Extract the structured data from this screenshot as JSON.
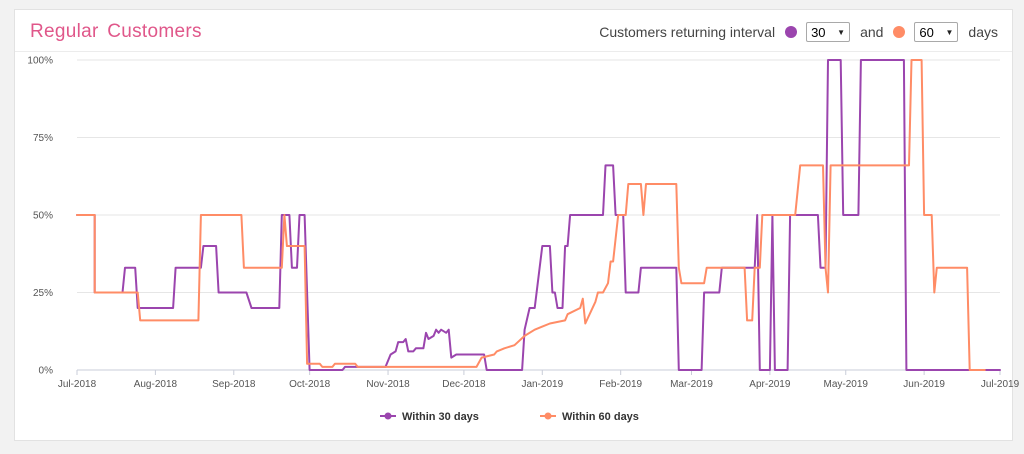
{
  "header": {
    "title": "Regular Customers",
    "interval_label": "Customers returning interval",
    "first_value": "30",
    "connector": "and",
    "second_value": "60",
    "unit": "days"
  },
  "colors": {
    "series_30": "#9b45ae",
    "series_60": "#ff8c66",
    "title": "#e0578a"
  },
  "icons": {
    "dropdown": "caret-down"
  },
  "chart_data": {
    "type": "line",
    "title": "",
    "xlabel": "",
    "ylabel": "",
    "ylim": [
      0,
      100
    ],
    "y_ticks": [
      0,
      25,
      50,
      75,
      100
    ],
    "y_tick_labels": [
      "0%",
      "25%",
      "50%",
      "75%",
      "100%"
    ],
    "x_range": [
      "2018-07-01",
      "2019-07-01"
    ],
    "x_ticks": [
      "2018-07-01",
      "2018-08-01",
      "2018-09-01",
      "2018-10-01",
      "2018-11-01",
      "2018-12-01",
      "2019-01-01",
      "2019-02-01",
      "2019-03-01",
      "2019-04-01",
      "2019-05-01",
      "2019-06-01",
      "2019-07-01"
    ],
    "x_tick_labels": [
      "Jul-2018",
      "Aug-2018",
      "Sep-2018",
      "Oct-2018",
      "Nov-2018",
      "Dec-2018",
      "Jan-2019",
      "Feb-2019",
      "Mar-2019",
      "Apr-2019",
      "May-2019",
      "Jun-2019",
      "Jul-2019"
    ],
    "legend_position": "bottom",
    "grid": true,
    "series": [
      {
        "name": "Within 30 days",
        "points": [
          [
            "2018-07-01",
            50
          ],
          [
            "2018-07-08",
            50
          ],
          [
            "2018-07-08",
            25
          ],
          [
            "2018-07-19",
            25
          ],
          [
            "2018-07-20",
            33
          ],
          [
            "2018-07-24",
            33
          ],
          [
            "2018-07-25",
            20
          ],
          [
            "2018-08-08",
            20
          ],
          [
            "2018-08-09",
            33
          ],
          [
            "2018-08-19",
            33
          ],
          [
            "2018-08-20",
            40
          ],
          [
            "2018-08-25",
            40
          ],
          [
            "2018-08-26",
            25
          ],
          [
            "2018-09-06",
            25
          ],
          [
            "2018-09-08",
            20
          ],
          [
            "2018-09-19",
            20
          ],
          [
            "2018-09-20",
            50
          ],
          [
            "2018-09-23",
            50
          ],
          [
            "2018-09-24",
            33
          ],
          [
            "2018-09-26",
            33
          ],
          [
            "2018-09-27",
            50
          ],
          [
            "2018-09-29",
            50
          ],
          [
            "2018-10-01",
            0
          ],
          [
            "2018-10-14",
            0
          ],
          [
            "2018-10-15",
            1
          ],
          [
            "2018-10-31",
            1
          ],
          [
            "2018-11-02",
            5
          ],
          [
            "2018-11-04",
            6
          ],
          [
            "2018-11-05",
            9
          ],
          [
            "2018-11-07",
            9
          ],
          [
            "2018-11-08",
            10
          ],
          [
            "2018-11-09",
            6
          ],
          [
            "2018-11-11",
            6
          ],
          [
            "2018-11-12",
            7
          ],
          [
            "2018-11-15",
            7
          ],
          [
            "2018-11-16",
            12
          ],
          [
            "2018-11-17",
            10
          ],
          [
            "2018-11-19",
            11
          ],
          [
            "2018-11-20",
            13
          ],
          [
            "2018-11-21",
            12
          ],
          [
            "2018-11-22",
            13
          ],
          [
            "2018-11-24",
            12
          ],
          [
            "2018-11-25",
            13
          ],
          [
            "2018-11-26",
            4
          ],
          [
            "2018-11-28",
            5
          ],
          [
            "2018-12-09",
            5
          ],
          [
            "2018-12-10",
            0
          ],
          [
            "2018-12-24",
            0
          ],
          [
            "2018-12-25",
            13
          ],
          [
            "2018-12-27",
            20
          ],
          [
            "2018-12-29",
            20
          ],
          [
            "2019-01-01",
            40
          ],
          [
            "2019-01-04",
            40
          ],
          [
            "2019-01-05",
            25
          ],
          [
            "2019-01-06",
            25
          ],
          [
            "2019-01-07",
            20
          ],
          [
            "2019-01-09",
            20
          ],
          [
            "2019-01-10",
            40
          ],
          [
            "2019-01-11",
            40
          ],
          [
            "2019-01-12",
            50
          ],
          [
            "2019-01-25",
            50
          ],
          [
            "2019-01-26",
            66
          ],
          [
            "2019-01-29",
            66
          ],
          [
            "2019-01-30",
            50
          ],
          [
            "2019-02-02",
            50
          ],
          [
            "2019-02-03",
            25
          ],
          [
            "2019-02-08",
            25
          ],
          [
            "2019-02-09",
            33
          ],
          [
            "2019-02-23",
            33
          ],
          [
            "2019-02-24",
            0
          ],
          [
            "2019-03-05",
            0
          ],
          [
            "2019-03-06",
            25
          ],
          [
            "2019-03-12",
            25
          ],
          [
            "2019-03-13",
            33
          ],
          [
            "2019-03-26",
            33
          ],
          [
            "2019-03-27",
            50
          ],
          [
            "2019-03-28",
            0
          ],
          [
            "2019-04-01",
            0
          ],
          [
            "2019-04-02",
            50
          ],
          [
            "2019-04-03",
            0
          ],
          [
            "2019-04-08",
            0
          ],
          [
            "2019-04-09",
            50
          ],
          [
            "2019-04-20",
            50
          ],
          [
            "2019-04-21",
            33
          ],
          [
            "2019-04-23",
            33
          ],
          [
            "2019-04-24",
            100
          ],
          [
            "2019-04-29",
            100
          ],
          [
            "2019-04-30",
            50
          ],
          [
            "2019-05-06",
            50
          ],
          [
            "2019-05-07",
            100
          ],
          [
            "2019-05-24",
            100
          ],
          [
            "2019-05-25",
            0
          ],
          [
            "2019-07-01",
            0
          ]
        ]
      },
      {
        "name": "Within 60 days",
        "points": [
          [
            "2018-07-01",
            50
          ],
          [
            "2018-07-08",
            50
          ],
          [
            "2018-07-08",
            25
          ],
          [
            "2018-07-25",
            25
          ],
          [
            "2018-07-26",
            16
          ],
          [
            "2018-08-18",
            16
          ],
          [
            "2018-08-19",
            50
          ],
          [
            "2018-09-04",
            50
          ],
          [
            "2018-09-05",
            33
          ],
          [
            "2018-09-20",
            33
          ],
          [
            "2018-09-21",
            50
          ],
          [
            "2018-09-22",
            40
          ],
          [
            "2018-09-29",
            40
          ],
          [
            "2018-09-30",
            2
          ],
          [
            "2018-10-05",
            2
          ],
          [
            "2018-10-06",
            1
          ],
          [
            "2018-10-10",
            1
          ],
          [
            "2018-10-11",
            2
          ],
          [
            "2018-10-19",
            2
          ],
          [
            "2018-10-20",
            1
          ],
          [
            "2018-12-06",
            1
          ],
          [
            "2018-12-08",
            4
          ],
          [
            "2018-12-13",
            5
          ],
          [
            "2018-12-14",
            6
          ],
          [
            "2018-12-17",
            7
          ],
          [
            "2018-12-21",
            8
          ],
          [
            "2018-12-25",
            11
          ],
          [
            "2018-12-29",
            13
          ],
          [
            "2019-01-01",
            14
          ],
          [
            "2019-01-04",
            15
          ],
          [
            "2019-01-10",
            16
          ],
          [
            "2019-01-11",
            18
          ],
          [
            "2019-01-16",
            20
          ],
          [
            "2019-01-17",
            23
          ],
          [
            "2019-01-18",
            15
          ],
          [
            "2019-01-22",
            22
          ],
          [
            "2019-01-23",
            25
          ],
          [
            "2019-01-25",
            25
          ],
          [
            "2019-01-27",
            28
          ],
          [
            "2019-01-28",
            35
          ],
          [
            "2019-01-29",
            35
          ],
          [
            "2019-01-31",
            50
          ],
          [
            "2019-02-03",
            50
          ],
          [
            "2019-02-04",
            60
          ],
          [
            "2019-02-09",
            60
          ],
          [
            "2019-02-10",
            50
          ],
          [
            "2019-02-11",
            60
          ],
          [
            "2019-02-23",
            60
          ],
          [
            "2019-02-24",
            33
          ],
          [
            "2019-02-25",
            28
          ],
          [
            "2019-03-06",
            28
          ],
          [
            "2019-03-07",
            33
          ],
          [
            "2019-03-22",
            33
          ],
          [
            "2019-03-23",
            16
          ],
          [
            "2019-03-25",
            16
          ],
          [
            "2019-03-26",
            33
          ],
          [
            "2019-03-28",
            33
          ],
          [
            "2019-03-29",
            50
          ],
          [
            "2019-04-11",
            50
          ],
          [
            "2019-04-13",
            66
          ],
          [
            "2019-04-22",
            66
          ],
          [
            "2019-04-23",
            33
          ],
          [
            "2019-04-24",
            25
          ],
          [
            "2019-04-25",
            66
          ],
          [
            "2019-05-26",
            66
          ],
          [
            "2019-05-27",
            100
          ],
          [
            "2019-05-31",
            100
          ],
          [
            "2019-06-01",
            50
          ],
          [
            "2019-06-04",
            50
          ],
          [
            "2019-06-05",
            25
          ],
          [
            "2019-06-06",
            33
          ],
          [
            "2019-06-18",
            33
          ],
          [
            "2019-06-19",
            0
          ],
          [
            "2019-06-25",
            0
          ]
        ]
      }
    ]
  }
}
